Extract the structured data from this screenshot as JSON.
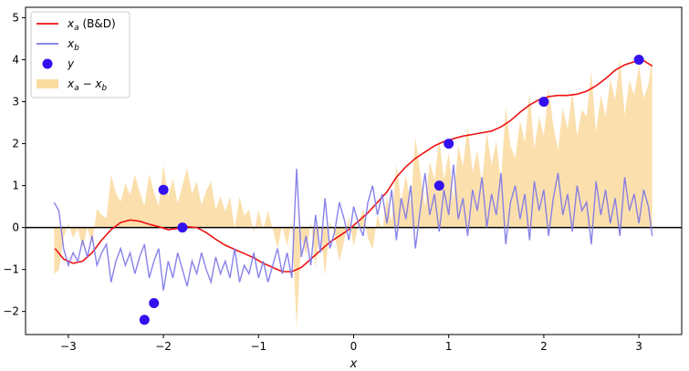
{
  "chart_data": {
    "type": "line",
    "title": "",
    "xlabel": "x",
    "ylabel": "",
    "xlim": [
      -3.45,
      3.45
    ],
    "ylim": [
      -2.55,
      5.25
    ],
    "x_ticks": [
      -3,
      -2,
      -1,
      0,
      1,
      2,
      3
    ],
    "y_ticks": [
      -2,
      -1,
      0,
      1,
      2,
      3,
      4,
      5
    ],
    "x_tick_labels": [
      "−3",
      "−2",
      "−1",
      "0",
      "1",
      "2",
      "3"
    ],
    "y_tick_labels": [
      "−2",
      "−1",
      "0",
      "1",
      "2",
      "3",
      "4",
      "5"
    ],
    "grid": false,
    "legend_position": "top-left",
    "horizontal_line_y": 0,
    "legend": [
      {
        "label": "x_a (B&D)",
        "main": "x",
        "sub": "a",
        "suffix": " (B&D)",
        "kind": "line",
        "color": "#ee1111"
      },
      {
        "label": "x_b",
        "main": "x",
        "sub": "b",
        "suffix": "",
        "kind": "line",
        "color": "#7b74e8"
      },
      {
        "label": "y",
        "main": "y",
        "sub": "",
        "suffix": "",
        "kind": "marker",
        "color": "#3311ee"
      },
      {
        "label": "x_a − x_b",
        "main": "x",
        "sub": "a",
        "suffix": " − ",
        "main2": "x",
        "sub2": "b",
        "kind": "fill",
        "color": "#fadba0"
      }
    ],
    "series": [
      {
        "name": "x_a (B&D)",
        "kind": "line",
        "color": "#ee1111",
        "x": [
          -3.14,
          -3.05,
          -2.95,
          -2.85,
          -2.75,
          -2.65,
          -2.55,
          -2.45,
          -2.35,
          -2.25,
          -2.15,
          -2.05,
          -1.95,
          -1.85,
          -1.75,
          -1.65,
          -1.55,
          -1.45,
          -1.35,
          -1.25,
          -1.15,
          -1.05,
          -0.95,
          -0.85,
          -0.75,
          -0.65,
          -0.55,
          -0.45,
          -0.35,
          -0.25,
          -0.15,
          -0.05,
          0.05,
          0.15,
          0.25,
          0.35,
          0.45,
          0.55,
          0.65,
          0.75,
          0.85,
          0.95,
          1.05,
          1.15,
          1.25,
          1.35,
          1.45,
          1.55,
          1.65,
          1.75,
          1.85,
          1.95,
          2.05,
          2.15,
          2.25,
          2.35,
          2.45,
          2.55,
          2.65,
          2.75,
          2.85,
          2.95,
          3.05,
          3.14
        ],
        "y": [
          -0.5,
          -0.75,
          -0.85,
          -0.8,
          -0.6,
          -0.3,
          -0.05,
          0.12,
          0.18,
          0.15,
          0.08,
          0.02,
          -0.05,
          -0.02,
          0.02,
          0.0,
          -0.12,
          -0.28,
          -0.42,
          -0.52,
          -0.62,
          -0.72,
          -0.85,
          -0.95,
          -1.05,
          -1.05,
          -0.95,
          -0.75,
          -0.55,
          -0.35,
          -0.2,
          -0.05,
          0.15,
          0.35,
          0.6,
          0.85,
          1.2,
          1.45,
          1.65,
          1.8,
          1.95,
          2.05,
          2.12,
          2.18,
          2.22,
          2.26,
          2.3,
          2.4,
          2.55,
          2.75,
          2.92,
          3.05,
          3.12,
          3.15,
          3.15,
          3.18,
          3.25,
          3.38,
          3.55,
          3.75,
          3.88,
          3.95,
          3.98,
          3.85
        ]
      },
      {
        "name": "x_b",
        "kind": "line",
        "color": "#7b74e8",
        "x": [
          -3.15,
          -3.1,
          -3.05,
          -3.0,
          -2.95,
          -2.9,
          -2.85,
          -2.8,
          -2.75,
          -2.7,
          -2.65,
          -2.6,
          -2.55,
          -2.5,
          -2.45,
          -2.4,
          -2.35,
          -2.3,
          -2.25,
          -2.2,
          -2.15,
          -2.1,
          -2.05,
          -2.0,
          -1.95,
          -1.9,
          -1.85,
          -1.8,
          -1.75,
          -1.7,
          -1.65,
          -1.6,
          -1.55,
          -1.5,
          -1.45,
          -1.4,
          -1.35,
          -1.3,
          -1.25,
          -1.2,
          -1.15,
          -1.1,
          -1.05,
          -1.0,
          -0.95,
          -0.9,
          -0.85,
          -0.8,
          -0.75,
          -0.7,
          -0.65,
          -0.6,
          -0.55,
          -0.5,
          -0.45,
          -0.4,
          -0.35,
          -0.3,
          -0.25,
          -0.2,
          -0.15,
          -0.1,
          -0.05,
          0.0,
          0.05,
          0.1,
          0.15,
          0.2,
          0.25,
          0.3,
          0.35,
          0.4,
          0.45,
          0.5,
          0.55,
          0.6,
          0.65,
          0.7,
          0.75,
          0.8,
          0.85,
          0.9,
          0.95,
          1.0,
          1.05,
          1.1,
          1.15,
          1.2,
          1.25,
          1.3,
          1.35,
          1.4,
          1.45,
          1.5,
          1.55,
          1.6,
          1.65,
          1.7,
          1.75,
          1.8,
          1.85,
          1.9,
          1.95,
          2.0,
          2.05,
          2.1,
          2.15,
          2.2,
          2.25,
          2.3,
          2.35,
          2.4,
          2.45,
          2.5,
          2.55,
          2.6,
          2.65,
          2.7,
          2.75,
          2.8,
          2.85,
          2.9,
          2.95,
          3.0,
          3.05,
          3.1,
          3.14
        ],
        "y": [
          0.6,
          0.4,
          -0.5,
          -0.9,
          -0.6,
          -0.8,
          -0.3,
          -0.7,
          -0.2,
          -0.9,
          -0.6,
          -0.4,
          -1.3,
          -0.8,
          -0.5,
          -0.9,
          -0.6,
          -1.1,
          -0.7,
          -0.4,
          -1.2,
          -0.8,
          -0.5,
          -1.5,
          -0.8,
          -1.2,
          -0.6,
          -1.0,
          -1.4,
          -0.8,
          -1.1,
          -0.6,
          -1.0,
          -1.3,
          -0.7,
          -1.1,
          -0.8,
          -1.2,
          -0.5,
          -1.3,
          -0.9,
          -1.1,
          -0.6,
          -1.2,
          -0.8,
          -1.3,
          -0.9,
          -0.5,
          -1.1,
          -0.6,
          -1.2,
          1.4,
          -0.7,
          -0.2,
          -0.9,
          0.3,
          -0.6,
          0.7,
          -0.5,
          -0.1,
          0.6,
          0.2,
          -0.3,
          0.5,
          0.1,
          -0.2,
          0.6,
          1.0,
          0.3,
          0.8,
          0.1,
          0.9,
          -0.3,
          0.7,
          0.2,
          1.0,
          -0.5,
          0.4,
          1.3,
          0.3,
          0.8,
          -0.1,
          0.9,
          0.3,
          1.5,
          0.2,
          0.7,
          -0.2,
          0.9,
          0.4,
          1.2,
          0.0,
          0.8,
          0.3,
          1.3,
          -0.4,
          0.6,
          1.0,
          0.2,
          0.8,
          -0.3,
          1.1,
          0.4,
          0.9,
          -0.2,
          0.7,
          1.3,
          0.3,
          0.8,
          -0.1,
          1.0,
          0.4,
          0.6,
          -0.4,
          1.1,
          0.3,
          0.9,
          0.1,
          0.7,
          -0.2,
          1.2,
          0.4,
          0.8,
          0.1,
          0.9,
          0.5,
          -0.2
        ]
      },
      {
        "name": "y",
        "kind": "scatter",
        "color": "#3311ee",
        "x": [
          -2.2,
          -2.1,
          -2.0,
          -1.8,
          0.9,
          1.0,
          2.0,
          3.0
        ],
        "y": [
          -2.2,
          -1.8,
          0.9,
          0.0,
          1.0,
          2.0,
          3.0,
          4.0
        ]
      }
    ]
  }
}
